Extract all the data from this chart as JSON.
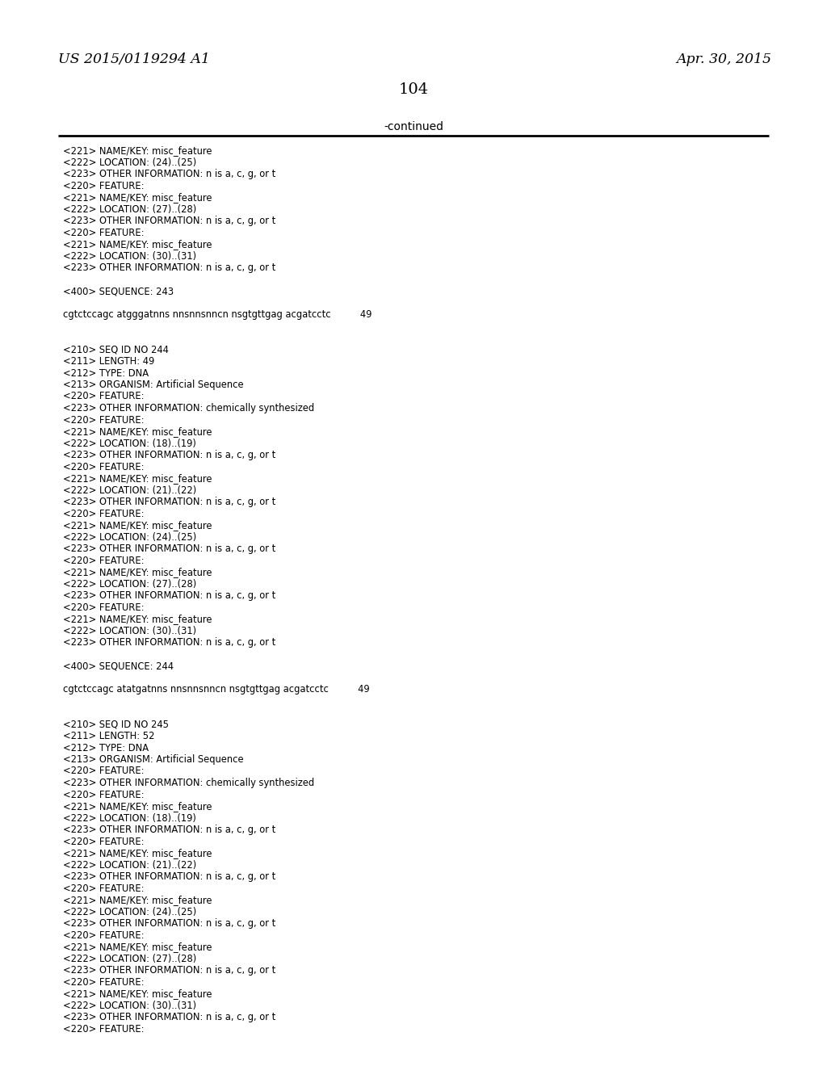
{
  "header_left": "US 2015/0119294 A1",
  "header_right": "Apr. 30, 2015",
  "page_number": "104",
  "continued_text": "-continued",
  "background_color": "#ffffff",
  "text_color": "#000000",
  "content_lines": [
    "<221> NAME/KEY: misc_feature",
    "<222> LOCATION: (24)..(25)",
    "<223> OTHER INFORMATION: n is a, c, g, or t",
    "<220> FEATURE:",
    "<221> NAME/KEY: misc_feature",
    "<222> LOCATION: (27)..(28)",
    "<223> OTHER INFORMATION: n is a, c, g, or t",
    "<220> FEATURE:",
    "<221> NAME/KEY: misc_feature",
    "<222> LOCATION: (30)..(31)",
    "<223> OTHER INFORMATION: n is a, c, g, or t",
    "",
    "<400> SEQUENCE: 243",
    "",
    "cgtctccagc atgggatnns nnsnnsnnсn nsgtgttgag acgatcctc          49",
    "",
    "",
    "<210> SEQ ID NO 244",
    "<211> LENGTH: 49",
    "<212> TYPE: DNA",
    "<213> ORGANISM: Artificial Sequence",
    "<220> FEATURE:",
    "<223> OTHER INFORMATION: chemically synthesized",
    "<220> FEATURE:",
    "<221> NAME/KEY: misc_feature",
    "<222> LOCATION: (18)..(19)",
    "<223> OTHER INFORMATION: n is a, c, g, or t",
    "<220> FEATURE:",
    "<221> NAME/KEY: misc_feature",
    "<222> LOCATION: (21)..(22)",
    "<223> OTHER INFORMATION: n is a, c, g, or t",
    "<220> FEATURE:",
    "<221> NAME/KEY: misc_feature",
    "<222> LOCATION: (24)..(25)",
    "<223> OTHER INFORMATION: n is a, c, g, or t",
    "<220> FEATURE:",
    "<221> NAME/KEY: misc_feature",
    "<222> LOCATION: (27)..(28)",
    "<223> OTHER INFORMATION: n is a, c, g, or t",
    "<220> FEATURE:",
    "<221> NAME/KEY: misc_feature",
    "<222> LOCATION: (30)..(31)",
    "<223> OTHER INFORMATION: n is a, c, g, or t",
    "",
    "<400> SEQUENCE: 244",
    "",
    "cgtctccagc atatgatnns nnsnnsnnсn nsgtgttgag acgatcctc          49",
    "",
    "",
    "<210> SEQ ID NO 245",
    "<211> LENGTH: 52",
    "<212> TYPE: DNA",
    "<213> ORGANISM: Artificial Sequence",
    "<220> FEATURE:",
    "<223> OTHER INFORMATION: chemically synthesized",
    "<220> FEATURE:",
    "<221> NAME/KEY: misc_feature",
    "<222> LOCATION: (18)..(19)",
    "<223> OTHER INFORMATION: n is a, c, g, or t",
    "<220> FEATURE:",
    "<221> NAME/KEY: misc_feature",
    "<222> LOCATION: (21)..(22)",
    "<223> OTHER INFORMATION: n is a, c, g, or t",
    "<220> FEATURE:",
    "<221> NAME/KEY: misc_feature",
    "<222> LOCATION: (24)..(25)",
    "<223> OTHER INFORMATION: n is a, c, g, or t",
    "<220> FEATURE:",
    "<221> NAME/KEY: misc_feature",
    "<222> LOCATION: (27)..(28)",
    "<223> OTHER INFORMATION: n is a, c, g, or t",
    "<220> FEATURE:",
    "<221> NAME/KEY: misc_feature",
    "<222> LOCATION: (30)..(31)",
    "<223> OTHER INFORMATION: n is a, c, g, or t",
    "<220> FEATURE:"
  ]
}
